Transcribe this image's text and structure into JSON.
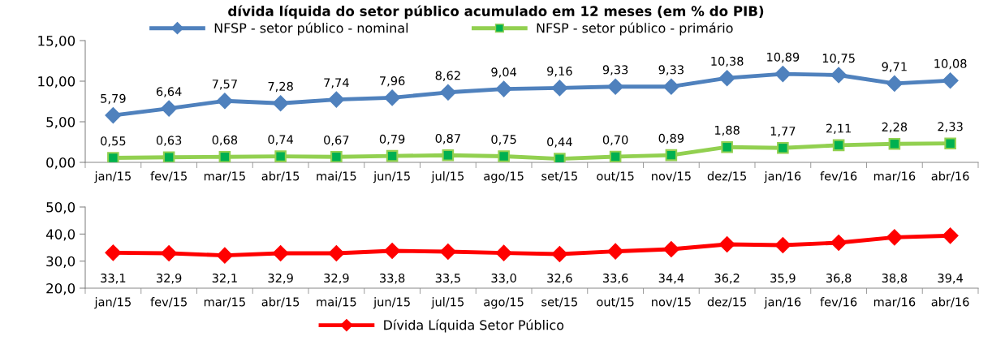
{
  "chart_data": [
    {
      "type": "line",
      "title": "dívida líquida do setor público acumulado em 12 meses (em % do PIB)",
      "categories": [
        "jan/15",
        "fev/15",
        "mar/15",
        "abr/15",
        "mai/15",
        "jun/15",
        "jul/15",
        "ago/15",
        "set/15",
        "out/15",
        "nov/15",
        "dez/15",
        "jan/16",
        "fev/16",
        "mar/16",
        "abr/16"
      ],
      "series": [
        {
          "name": "NFSP - setor público - nominal",
          "color": "#4f81bd",
          "marker": "diamond",
          "values": [
            5.79,
            6.64,
            7.57,
            7.28,
            7.74,
            7.96,
            8.62,
            9.04,
            9.16,
            9.33,
            9.33,
            10.38,
            10.89,
            10.75,
            9.71,
            10.08
          ],
          "value_labels": [
            "5,79",
            "6,64",
            "7,57",
            "7,28",
            "7,74",
            "7,96",
            "8,62",
            "9,04",
            "9,16",
            "9,33",
            "9,33",
            "10,38",
            "10,89",
            "10,75",
            "9,71",
            "10,08"
          ]
        },
        {
          "name": "NFSP - setor público - primário",
          "color": "#92d050",
          "marker": "square",
          "values": [
            0.55,
            0.63,
            0.68,
            0.74,
            0.67,
            0.79,
            0.87,
            0.75,
            0.44,
            0.7,
            0.89,
            1.88,
            1.77,
            2.11,
            2.28,
            2.33
          ],
          "value_labels": [
            "0,55",
            "0,63",
            "0,68",
            "0,74",
            "0,67",
            "0,79",
            "0,87",
            "0,75",
            "0,44",
            "0,70",
            "0,89",
            "1,88",
            "1,77",
            "2,11",
            "2,28",
            "2,33"
          ]
        }
      ],
      "ylim": [
        0,
        15
      ],
      "yticks": [
        {
          "value": 0,
          "label": "0,00"
        },
        {
          "value": 5,
          "label": "5,00"
        },
        {
          "value": 10,
          "label": "10,00"
        },
        {
          "value": 15,
          "label": "15,00"
        }
      ],
      "grid": false,
      "legend": "top",
      "line_style": "solid"
    },
    {
      "type": "line",
      "categories": [
        "jan/15",
        "fev/15",
        "mar/15",
        "abr/15",
        "mai/15",
        "jun/15",
        "jul/15",
        "ago/15",
        "set/15",
        "out/15",
        "nov/15",
        "dez/15",
        "jan/16",
        "fev/16",
        "mar/16",
        "abr/16"
      ],
      "series": [
        {
          "name": "Dívida Líquida Setor Público",
          "color": "#ff0000",
          "marker": "diamond",
          "values": [
            33.1,
            32.9,
            32.1,
            32.9,
            32.9,
            33.8,
            33.5,
            33.0,
            32.6,
            33.6,
            34.4,
            36.2,
            35.9,
            36.8,
            38.8,
            39.4
          ],
          "value_labels": [
            "33,1",
            "32,9",
            "32,1",
            "32,9",
            "32,9",
            "33,8",
            "33,5",
            "33,0",
            "32,6",
            "33,6",
            "34,4",
            "36,2",
            "35,9",
            "36,8",
            "38,8",
            "39,4"
          ]
        }
      ],
      "ylim": [
        20,
        50
      ],
      "yticks": [
        {
          "value": 20,
          "label": "20,0"
        },
        {
          "value": 30,
          "label": "30,0"
        },
        {
          "value": 40,
          "label": "40,0"
        },
        {
          "value": 50,
          "label": "50,0"
        }
      ],
      "grid": false,
      "legend": "bottom",
      "line_style": "solid"
    }
  ]
}
